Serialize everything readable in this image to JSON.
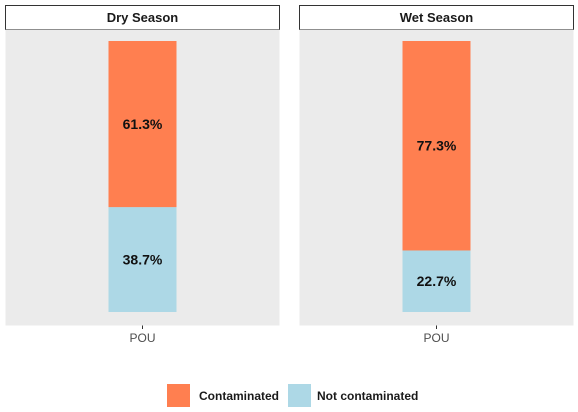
{
  "chart_data": {
    "type": "bar",
    "stacked": true,
    "percent": true,
    "facets": [
      {
        "title": "Dry Season",
        "categories": [
          "POU"
        ],
        "series": [
          {
            "name": "Contaminated",
            "values": [
              61.3
            ],
            "label": "61.3%"
          },
          {
            "name": "Not contaminated",
            "values": [
              38.7
            ],
            "label": "38.7%"
          }
        ]
      },
      {
        "title": "Wet Season",
        "categories": [
          "POU"
        ],
        "series": [
          {
            "name": "Contaminated",
            "values": [
              77.3
            ],
            "label": "77.3%"
          },
          {
            "name": "Not contaminated",
            "values": [
              22.7
            ],
            "label": "22.7%"
          }
        ]
      }
    ],
    "ylim": [
      0,
      100
    ],
    "xlabel": "",
    "ylabel": "",
    "grid": false,
    "legend": {
      "position": "bottom",
      "entries": [
        "Contaminated",
        "Not contaminated"
      ]
    },
    "colors": {
      "Contaminated": "#FF7F50",
      "Not contaminated": "#ADD8E6",
      "panel_background": "#EBEBEB",
      "strip_background": "#FFFFFF"
    }
  }
}
